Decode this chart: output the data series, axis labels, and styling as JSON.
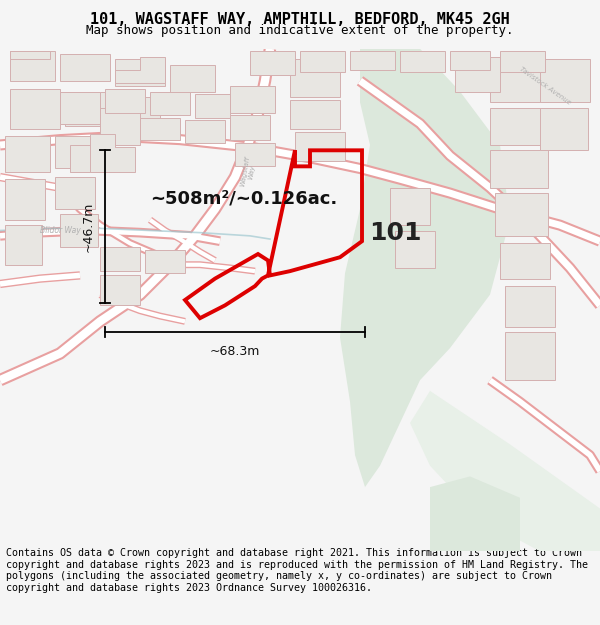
{
  "title_line1": "101, WAGSTAFF WAY, AMPTHILL, BEDFORD, MK45 2GH",
  "title_line2": "Map shows position and indicative extent of the property.",
  "footer_text": "Contains OS data © Crown copyright and database right 2021. This information is subject to Crown copyright and database rights 2023 and is reproduced with the permission of HM Land Registry. The polygons (including the associated geometry, namely x, y co-ordinates) are subject to Crown copyright and database rights 2023 Ordnance Survey 100026316.",
  "label_101": "101",
  "area_text": "~508m²/~0.126ac.",
  "dim_horiz": "~68.3m",
  "dim_vert": "~46.7m",
  "bg_color": "#f5f5f5",
  "map_bg": "#ffffff",
  "road_outline_color": "#e8a0a0",
  "road_fill_color": "#ffffff",
  "green_fill": "#dce8dc",
  "green2_fill": "#e8f0e8",
  "building_fill": "#e8e6e2",
  "building_edge": "#d4b0b0",
  "plot_color": "#dd0000",
  "blue_line": "#a0c8d0",
  "street_color": "#b0b0b0",
  "title_fontsize": 11,
  "subtitle_fontsize": 9,
  "footer_fontsize": 7.2,
  "label_fontsize": 18,
  "area_fontsize": 13,
  "dim_fontsize": 9
}
